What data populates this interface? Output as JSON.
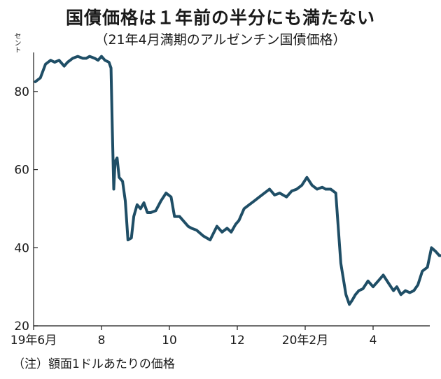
{
  "chart_data": {
    "type": "line",
    "title": "国債価格は１年前の半分にも満たない",
    "subtitle": "（21年4月満期のアルゼンチン国債価格）",
    "ylabel": "セント",
    "note": "（注）額面1ドルあたりの価格",
    "ylim": [
      20,
      90
    ],
    "yticks": [
      20,
      40,
      60,
      80
    ],
    "xlim": [
      0,
      12.3
    ],
    "xticks": [
      {
        "x": 0,
        "label": "19年6月"
      },
      {
        "x": 2,
        "label": "8"
      },
      {
        "x": 4,
        "label": "10"
      },
      {
        "x": 6,
        "label": "12"
      },
      {
        "x": 8,
        "label": "20年2月"
      },
      {
        "x": 10,
        "label": "4"
      }
    ],
    "series": [
      {
        "color": "#1f4e66",
        "x": [
          0.05,
          0.2,
          0.35,
          0.5,
          0.62,
          0.75,
          0.9,
          1.0,
          1.15,
          1.3,
          1.45,
          1.55,
          1.65,
          1.8,
          1.9,
          2.0,
          2.1,
          2.22,
          2.28,
          2.32,
          2.36,
          2.4,
          2.46,
          2.52,
          2.62,
          2.7,
          2.78,
          2.88,
          2.95,
          3.05,
          3.15,
          3.25,
          3.35,
          3.45,
          3.6,
          3.75,
          3.9,
          4.05,
          4.15,
          4.3,
          4.4,
          4.55,
          4.65,
          4.8,
          5.0,
          5.2,
          5.4,
          5.55,
          5.7,
          5.82,
          5.95,
          6.05,
          6.2,
          6.35,
          6.5,
          6.65,
          6.8,
          6.95,
          7.1,
          7.25,
          7.45,
          7.6,
          7.75,
          7.9,
          8.05,
          8.2,
          8.35,
          8.5,
          8.6,
          8.75,
          8.9,
          9.05,
          9.2,
          9.3,
          9.38,
          9.48,
          9.58,
          9.7,
          9.85,
          10.0,
          10.15,
          10.3,
          10.45,
          10.6,
          10.7,
          10.82,
          10.95,
          11.08,
          11.2,
          11.32,
          11.45,
          11.6,
          11.72,
          11.85,
          11.95,
          12.05
        ],
        "values": [
          82.5,
          83.5,
          87,
          88,
          87.5,
          88,
          86.5,
          87.5,
          88.5,
          89,
          88.5,
          88.5,
          89,
          88.5,
          88,
          89,
          88,
          87.5,
          86,
          70,
          55,
          62,
          63,
          58,
          57,
          52,
          42,
          42.5,
          48,
          51,
          50,
          51.5,
          49,
          49,
          49.5,
          52,
          54,
          53,
          48,
          48,
          47,
          45.5,
          45,
          44.5,
          43,
          42,
          45.5,
          44,
          45,
          44,
          46,
          47,
          50,
          51,
          52,
          53,
          54,
          55,
          53.5,
          54,
          53,
          54.5,
          55,
          56,
          58,
          56,
          55,
          55.5,
          55,
          55,
          54,
          36,
          28,
          25.5,
          26.5,
          28,
          29,
          29.5,
          31.5,
          30,
          31.5,
          33,
          31,
          29,
          30,
          28,
          29,
          28.5,
          29,
          30.5,
          34,
          35,
          40,
          39,
          38,
          38
        ]
      }
    ]
  }
}
